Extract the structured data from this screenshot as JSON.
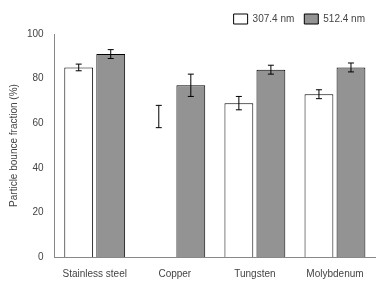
{
  "chart_data": {
    "type": "bar",
    "ylabel": "Particle bounce fraction (%)",
    "categories": [
      "Stainless steel",
      "Copper",
      "Tungsten",
      "Molybdenum"
    ],
    "series": [
      {
        "name": "307.4 nm",
        "color": "white",
        "values": [
          85,
          null,
          69,
          73
        ],
        "errors": [
          1.5,
          5,
          3,
          2
        ],
        "error_centers": [
          null,
          63,
          null,
          null
        ]
      },
      {
        "name": "512.4 nm",
        "color": "#939393",
        "values": [
          91,
          77,
          84,
          85
        ],
        "errors": [
          2,
          5,
          2,
          2
        ]
      }
    ],
    "ylim": [
      0,
      100
    ],
    "yticks": [
      0,
      20,
      40,
      60,
      80,
      100
    ],
    "grid": false,
    "legend": "upper right"
  }
}
